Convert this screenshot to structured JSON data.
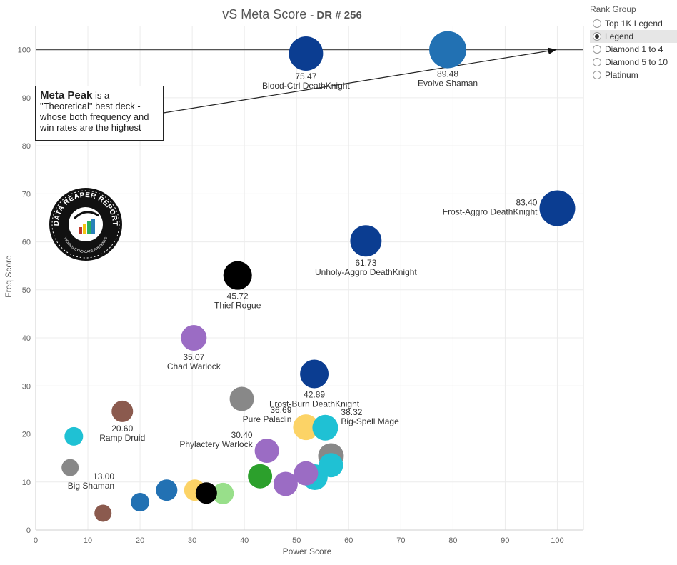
{
  "title": {
    "main": "vS Meta Score",
    "sub": "DR # 256"
  },
  "annotation": {
    "bold": "Meta Peak",
    "text": " is a \"Theoretical\" best deck - whose both frequency and win rates are the highest"
  },
  "legend": {
    "title": "Rank Group",
    "items": [
      {
        "label": "Top 1K Legend",
        "selected": false
      },
      {
        "label": "Legend",
        "selected": true
      },
      {
        "label": "Diamond 1 to 4",
        "selected": false
      },
      {
        "label": "Diamond 5 to 10",
        "selected": false
      },
      {
        "label": "Platinum",
        "selected": false
      }
    ]
  },
  "logo": {
    "text": "DATA REAPER REPORT",
    "subtext": "VICIOUS SYNDICATE PRESENTS"
  },
  "colors": {
    "deathknight": "#0b3d91",
    "shaman": "#2271b3",
    "rogue": "#000000",
    "warlock": "#9b6cc4",
    "paladin": "#fcd366",
    "mage": "#1fc1d4",
    "druid": "#8b5a4e",
    "hunter": "#2ca02c",
    "demonhunter": "#98df8a",
    "priest": "#888888"
  },
  "chart_data": {
    "type": "scatter",
    "xlabel": "Power Score",
    "ylabel": "Freq Score",
    "xlim": [
      0,
      105
    ],
    "ylim": [
      0,
      105
    ],
    "xticks": [
      0,
      10,
      20,
      30,
      40,
      50,
      60,
      70,
      80,
      90,
      100
    ],
    "yticks": [
      0,
      10,
      20,
      30,
      40,
      50,
      60,
      70,
      80,
      90,
      100
    ],
    "grid": true,
    "reference_line": {
      "y": 100
    },
    "annotation_arrow": {
      "to": [
        100,
        100
      ]
    },
    "points": [
      {
        "x": 51.8,
        "y": 99.2,
        "label": "75.47",
        "name": "Blood-Ctrl DeathKnight",
        "cls": "deathknight",
        "r": 24
      },
      {
        "x": 79.0,
        "y": 100,
        "label": "89.48",
        "name": "Evolve Shaman",
        "cls": "shaman",
        "r": 26
      },
      {
        "x": 100,
        "y": 67,
        "label": "83.40",
        "name": "Frost-Aggro DeathKnight",
        "cls": "deathknight",
        "r": 25
      },
      {
        "x": 63.3,
        "y": 60.2,
        "label": "61.73",
        "name": "Unholy-Aggro DeathKnight",
        "cls": "deathknight",
        "r": 22
      },
      {
        "x": 38.7,
        "y": 53,
        "label": "45.72",
        "name": "Thief Rogue",
        "cls": "rogue",
        "r": 20
      },
      {
        "x": 30.3,
        "y": 40,
        "label": "35.07",
        "name": "Chad Warlock",
        "cls": "warlock",
        "r": 18
      },
      {
        "x": 53.4,
        "y": 32.5,
        "label": "42.89",
        "name": "Frost-Burn DeathKnight",
        "cls": "deathknight",
        "r": 20
      },
      {
        "x": 39.5,
        "y": 27.3,
        "cls": "priest",
        "r": 17
      },
      {
        "x": 16.6,
        "y": 24.7,
        "label": "20.60",
        "name": "Ramp Druid",
        "cls": "druid",
        "r": 15
      },
      {
        "x": 7.3,
        "y": 19.5,
        "cls": "mage",
        "r": 13
      },
      {
        "x": 51.8,
        "y": 21.4,
        "label": "36.69",
        "name": "Pure Paladin",
        "cls": "paladin",
        "r": 18
      },
      {
        "x": 55.5,
        "y": 21.3,
        "label": "38.32",
        "name": "Big-Spell Mage",
        "cls": "mage",
        "r": 18
      },
      {
        "x": 44.3,
        "y": 16.5,
        "label": "30.40",
        "name": "Phylactery Warlock",
        "cls": "warlock",
        "r": 17
      },
      {
        "x": 56.6,
        "y": 13.5,
        "cls": "mage",
        "r": 17
      },
      {
        "x": 56.6,
        "y": 15.4,
        "cls": "priest",
        "r": 18
      },
      {
        "x": 6.6,
        "y": 13,
        "cls": "priest",
        "r": 12
      },
      {
        "x": 51.8,
        "y": 11.8,
        "cls": "warlock",
        "r": 17
      },
      {
        "x": 53.5,
        "y": 11,
        "cls": "mage",
        "r": 18
      },
      {
        "x": 43.0,
        "y": 11.2,
        "cls": "hunter",
        "r": 17
      },
      {
        "x": 47.9,
        "y": 9.6,
        "cls": "warlock",
        "r": 17
      },
      {
        "x": 25.1,
        "y": 8.3,
        "cls": "shaman",
        "r": 15
      },
      {
        "x": 30.5,
        "y": 8.3,
        "cls": "paladin",
        "r": 15
      },
      {
        "x": 35.9,
        "y": 7.6,
        "cls": "demonhunter",
        "r": 15
      },
      {
        "x": 32.7,
        "y": 7.7,
        "cls": "rogue",
        "r": 15
      },
      {
        "x": 20.0,
        "y": 5.8,
        "label": "13.00",
        "name": "Big Shaman",
        "cls": "shaman",
        "r": 13
      },
      {
        "x": 12.9,
        "y": 3.5,
        "cls": "druid",
        "r": 12
      }
    ]
  }
}
